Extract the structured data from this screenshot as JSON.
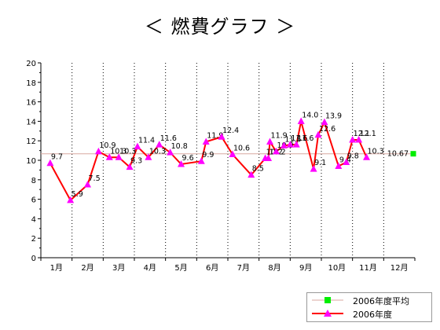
{
  "chart_data": {
    "type": "line",
    "title": "＜ 燃費グラフ ＞",
    "xlabel": "",
    "ylabel": "",
    "ylim": [
      0,
      20
    ],
    "yticks": [
      0,
      2,
      4,
      6,
      8,
      10,
      12,
      14,
      16,
      18,
      20
    ],
    "categories": [
      "1月",
      "2月",
      "3月",
      "4月",
      "5月",
      "6月",
      "7月",
      "8月",
      "9月",
      "10月",
      "11月",
      "12月"
    ],
    "grid": "dotted vertical month separators",
    "legend_position": "bottom-right",
    "series": [
      {
        "name": "2006年度",
        "color": "#ff0000",
        "marker_color": "#ff00ff",
        "marker": "triangle",
        "points": [
          {
            "month": 0.3,
            "value": 9.7,
            "label": "9.7"
          },
          {
            "month": 0.95,
            "value": 5.9,
            "label": "5.9"
          },
          {
            "month": 1.5,
            "value": 7.5,
            "label": "7.5"
          },
          {
            "month": 1.85,
            "value": 10.9,
            "label": "10.9"
          },
          {
            "month": 2.2,
            "value": 10.3,
            "label": "10.3"
          },
          {
            "month": 2.5,
            "value": 10.3,
            "label": "10.3"
          },
          {
            "month": 2.85,
            "value": 9.3,
            "label": "9.3"
          },
          {
            "month": 3.1,
            "value": 11.4,
            "label": "11.4"
          },
          {
            "month": 3.45,
            "value": 10.3,
            "label": "10.3"
          },
          {
            "month": 3.8,
            "value": 11.6,
            "label": "11.6"
          },
          {
            "month": 4.15,
            "value": 10.8,
            "label": "10.8"
          },
          {
            "month": 4.5,
            "value": 9.6,
            "label": "9.6"
          },
          {
            "month": 5.15,
            "value": 9.9,
            "label": "9.9"
          },
          {
            "month": 5.3,
            "value": 11.9,
            "label": "11.9"
          },
          {
            "month": 5.8,
            "value": 12.4,
            "label": "12.4"
          },
          {
            "month": 6.15,
            "value": 10.6,
            "label": "10.6"
          },
          {
            "month": 6.75,
            "value": 8.5,
            "label": "8.5"
          },
          {
            "month": 7.2,
            "value": 10.2,
            "label": "10.2"
          },
          {
            "month": 7.3,
            "value": 10.2,
            "label": "10.2"
          },
          {
            "month": 7.35,
            "value": 11.9,
            "label": "11.9"
          },
          {
            "month": 7.55,
            "value": 10.9,
            "label": "10.9"
          },
          {
            "month": 7.8,
            "value": 11.5,
            "label": "11.5"
          },
          {
            "month": 8.0,
            "value": 11.6,
            "label": "11.6"
          },
          {
            "month": 8.2,
            "value": 11.6,
            "label": "11.6"
          },
          {
            "month": 8.35,
            "value": 14.0,
            "label": "14.0"
          },
          {
            "month": 8.75,
            "value": 9.1,
            "label": "9.1"
          },
          {
            "month": 8.9,
            "value": 12.6,
            "label": "12.6"
          },
          {
            "month": 9.1,
            "value": 13.9,
            "label": "13.9"
          },
          {
            "month": 9.55,
            "value": 9.4,
            "label": "9.4"
          },
          {
            "month": 9.8,
            "value": 9.8,
            "label": "9.8"
          },
          {
            "month": 10.0,
            "value": 12.1,
            "label": "12.1"
          },
          {
            "month": 10.2,
            "value": 12.1,
            "label": "12.1"
          },
          {
            "month": 10.45,
            "value": 10.3,
            "label": "10.3"
          }
        ]
      },
      {
        "name": "2006年度平均",
        "color": "#d8a8a0",
        "marker_color": "#00ee00",
        "marker": "square",
        "value": 10.67,
        "label": "10.67",
        "marker_month": 12
      }
    ]
  }
}
